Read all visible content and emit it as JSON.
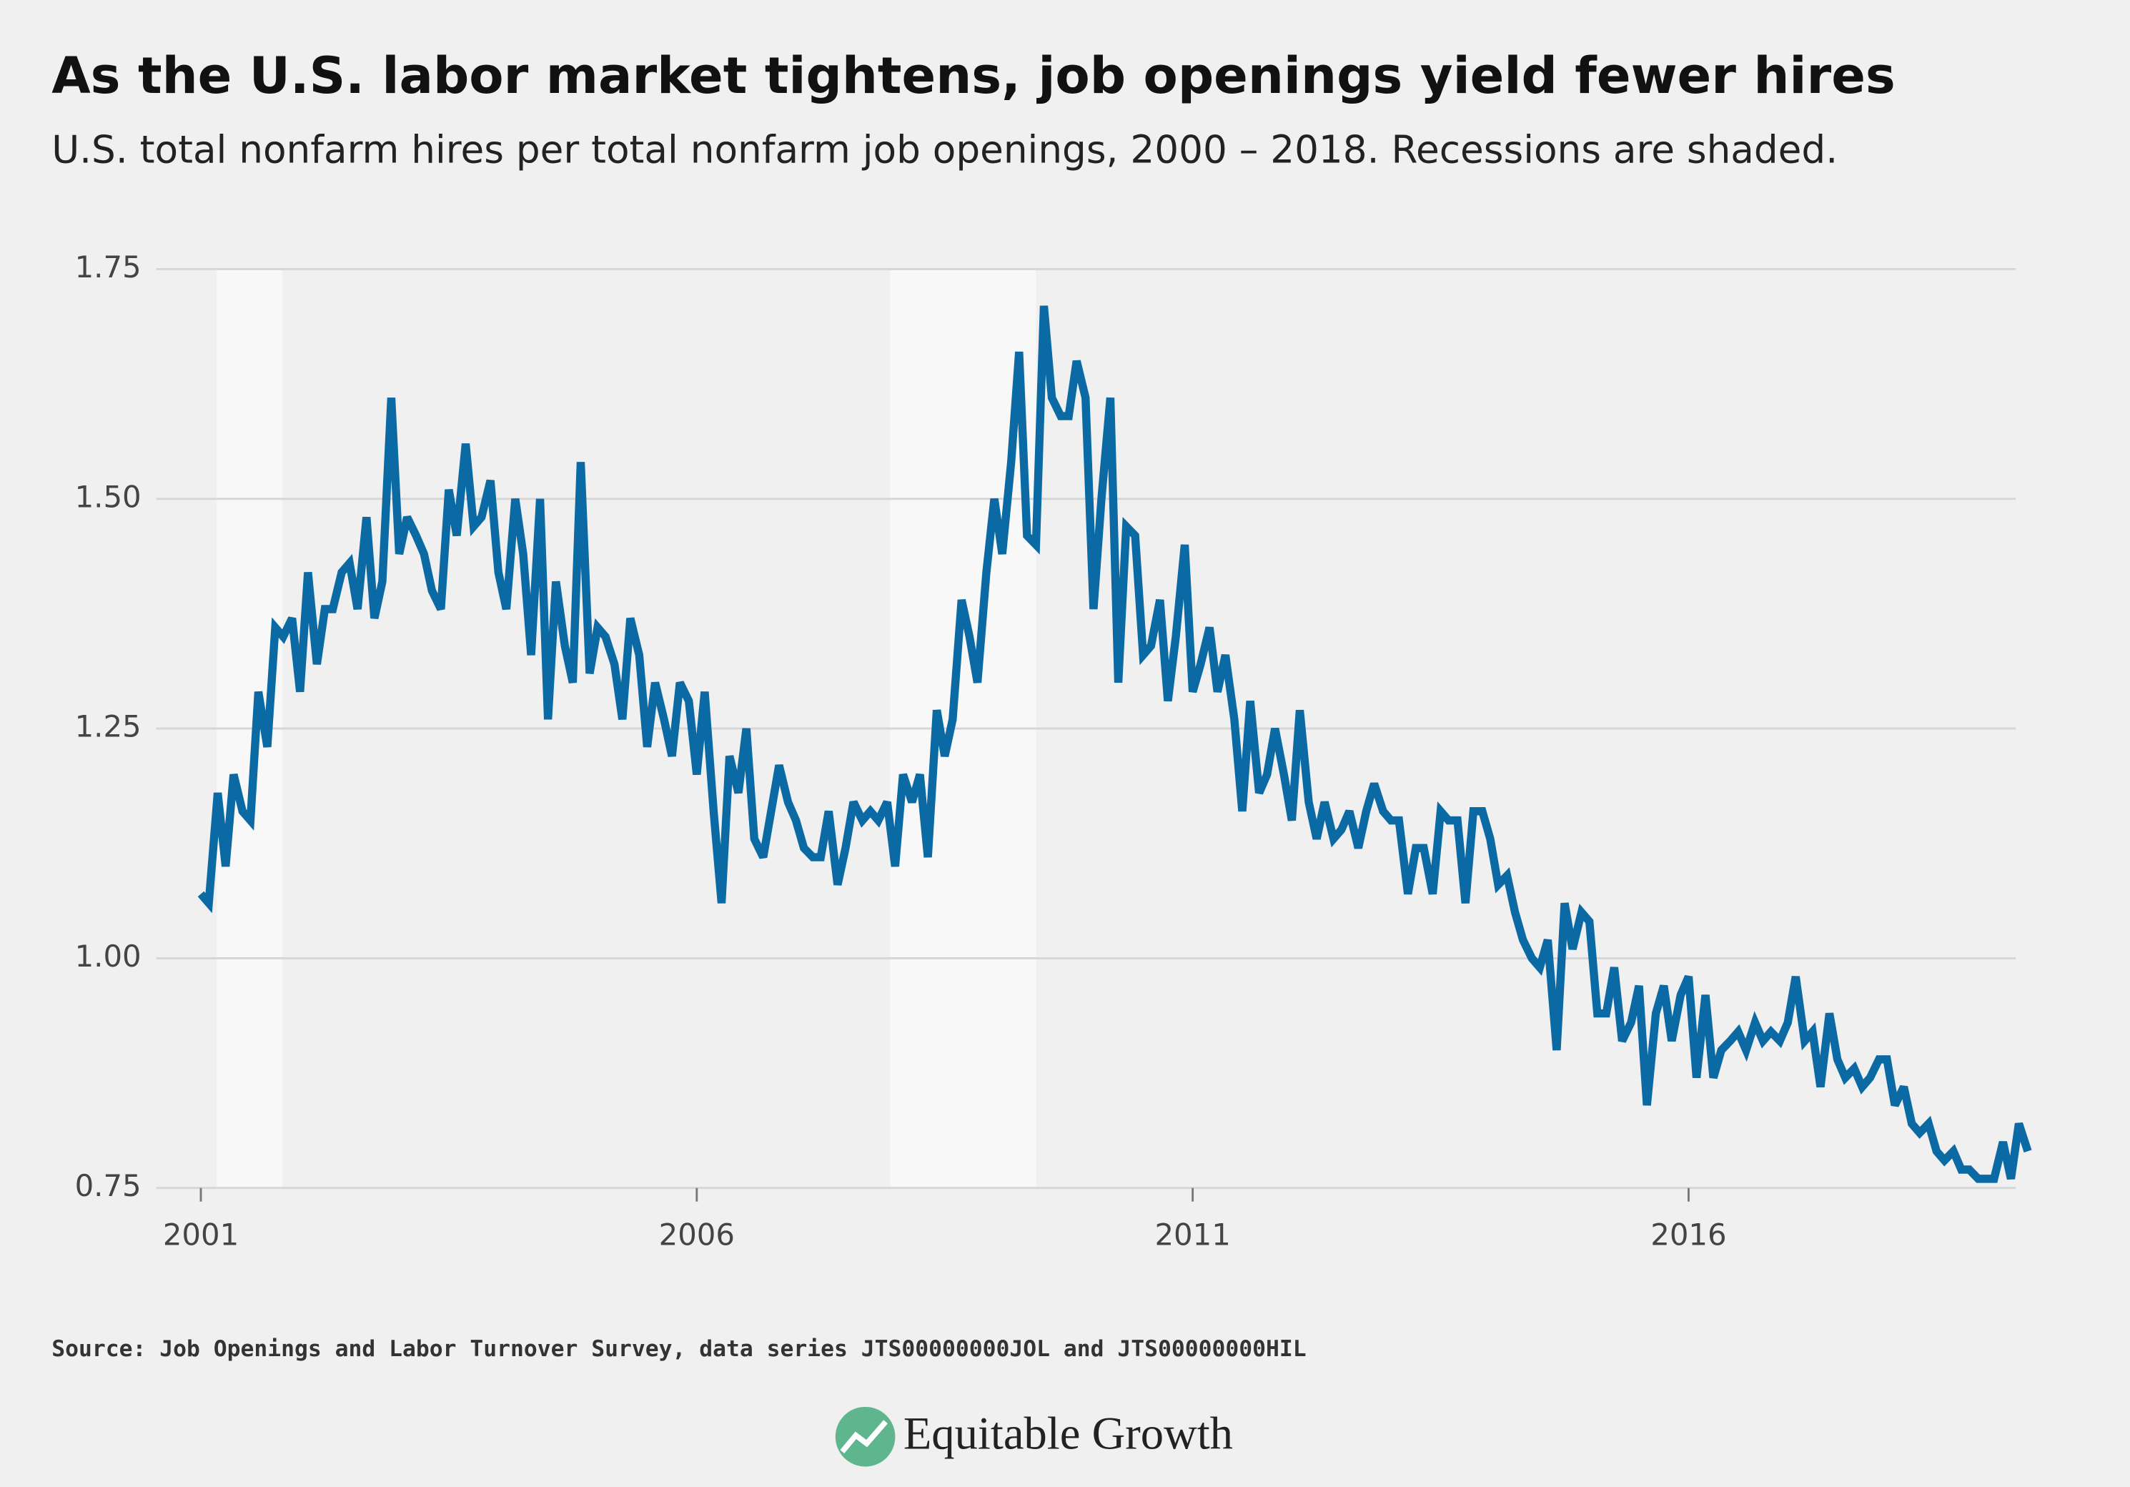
{
  "chart_data": {
    "type": "line",
    "title": "As the U.S. labor market tightens, job openings yield fewer hires",
    "subtitle": "U.S. total nonfarm hires per total nonfarm job openings, 2000 – 2018. Recessions are shaded.",
    "source": "Source: Job Openings and Labor Turnover Survey, data series JTS00000000JOL and JTS00000000HIL",
    "logo": "Equitable Growth",
    "color": "#0b69a3",
    "recession_color": "#f8f8f8",
    "recessions": [
      [
        2001.16,
        2001.82
      ],
      [
        2007.95,
        2009.42
      ]
    ],
    "xlim": [
      2000.55,
      2019.3
    ],
    "xticks": [
      2001,
      2006,
      2011,
      2016
    ],
    "ylim": [
      0.75,
      1.75
    ],
    "yticks": [
      0.75,
      {
        "value": 1.0,
        "label": "1.00"
      },
      1.25,
      {
        "value": 1.5,
        "label": "1.50"
      },
      1.75
    ],
    "grid": true,
    "x": [
      2001.0,
      2001.08,
      2001.17,
      2001.25,
      2001.33,
      2001.42,
      2001.5,
      2001.58,
      2001.67,
      2001.75,
      2001.83,
      2001.92,
      2002.0,
      2002.08,
      2002.17,
      2002.25,
      2002.33,
      2002.42,
      2002.5,
      2002.58,
      2002.67,
      2002.75,
      2002.83,
      2002.92,
      2003.0,
      2003.08,
      2003.17,
      2003.25,
      2003.33,
      2003.42,
      2003.5,
      2003.58,
      2003.67,
      2003.75,
      2003.83,
      2003.92,
      2004.0,
      2004.08,
      2004.17,
      2004.25,
      2004.33,
      2004.42,
      2004.5,
      2004.58,
      2004.67,
      2004.75,
      2004.83,
      2004.92,
      2005.0,
      2005.08,
      2005.17,
      2005.25,
      2005.33,
      2005.42,
      2005.5,
      2005.58,
      2005.67,
      2005.75,
      2005.83,
      2005.92,
      2006.0,
      2006.08,
      2006.17,
      2006.25,
      2006.33,
      2006.42,
      2006.5,
      2006.58,
      2006.67,
      2006.75,
      2006.83,
      2006.92,
      2007.0,
      2007.08,
      2007.17,
      2007.25,
      2007.33,
      2007.42,
      2007.5,
      2007.58,
      2007.67,
      2007.75,
      2007.83,
      2007.92,
      2008.0,
      2008.08,
      2008.17,
      2008.25,
      2008.33,
      2008.42,
      2008.5,
      2008.58,
      2008.67,
      2008.75,
      2008.83,
      2008.92,
      2009.0,
      2009.08,
      2009.17,
      2009.25,
      2009.33,
      2009.42,
      2009.5,
      2009.58,
      2009.67,
      2009.75,
      2009.83,
      2009.92,
      2010.0,
      2010.08,
      2010.17,
      2010.25,
      2010.33,
      2010.42,
      2010.5,
      2010.58,
      2010.67,
      2010.75,
      2010.83,
      2010.92,
      2011.0,
      2011.08,
      2011.17,
      2011.25,
      2011.33,
      2011.42,
      2011.5,
      2011.58,
      2011.67,
      2011.75,
      2011.83,
      2011.92,
      2012.0,
      2012.08,
      2012.17,
      2012.25,
      2012.33,
      2012.42,
      2012.5,
      2012.58,
      2012.67,
      2012.75,
      2012.83,
      2012.92,
      2013.0,
      2013.08,
      2013.17,
      2013.25,
      2013.33,
      2013.42,
      2013.5,
      2013.58,
      2013.67,
      2013.75,
      2013.83,
      2013.92,
      2014.0,
      2014.08,
      2014.17,
      2014.25,
      2014.33,
      2014.42,
      2014.5,
      2014.58,
      2014.67,
      2014.75,
      2014.83,
      2014.92,
      2015.0,
      2015.08,
      2015.17,
      2015.25,
      2015.33,
      2015.42,
      2015.5,
      2015.58,
      2015.67,
      2015.75,
      2015.83,
      2015.92,
      2016.0,
      2016.08,
      2016.17,
      2016.25,
      2016.33,
      2016.42,
      2016.5,
      2016.58,
      2016.67,
      2016.75,
      2016.83,
      2016.92,
      2017.0,
      2017.08,
      2017.17,
      2017.25,
      2017.33,
      2017.42,
      2017.5,
      2017.58,
      2017.67,
      2017.75,
      2017.83,
      2017.92,
      2018.0,
      2018.08,
      2018.17,
      2018.25,
      2018.33,
      2018.42,
      2018.5,
      2018.58,
      2018.67,
      2018.75,
      2018.83,
      2018.92,
      2019.0,
      2019.08,
      2019.17,
      2019.25,
      2019.33,
      2019.42
    ],
    "values": [
      1.07,
      1.06,
      1.18,
      1.1,
      1.2,
      1.16,
      1.15,
      1.29,
      1.23,
      1.36,
      1.35,
      1.37,
      1.29,
      1.42,
      1.32,
      1.38,
      1.38,
      1.42,
      1.43,
      1.38,
      1.48,
      1.37,
      1.41,
      1.61,
      1.44,
      1.48,
      1.46,
      1.44,
      1.4,
      1.38,
      1.51,
      1.46,
      1.56,
      1.47,
      1.48,
      1.52,
      1.42,
      1.38,
      1.5,
      1.44,
      1.33,
      1.5,
      1.26,
      1.41,
      1.34,
      1.3,
      1.54,
      1.31,
      1.36,
      1.35,
      1.32,
      1.26,
      1.37,
      1.33,
      1.23,
      1.3,
      1.26,
      1.22,
      1.3,
      1.28,
      1.2,
      1.29,
      1.16,
      1.06,
      1.22,
      1.18,
      1.25,
      1.13,
      1.11,
      1.16,
      1.21,
      1.17,
      1.15,
      1.12,
      1.11,
      1.11,
      1.16,
      1.08,
      1.12,
      1.17,
      1.15,
      1.16,
      1.15,
      1.17,
      1.1,
      1.2,
      1.17,
      1.2,
      1.11,
      1.27,
      1.22,
      1.26,
      1.39,
      1.35,
      1.3,
      1.42,
      1.5,
      1.44,
      1.54,
      1.66,
      1.46,
      1.45,
      1.71,
      1.61,
      1.59,
      1.59,
      1.65,
      1.61,
      1.38,
      1.5,
      1.61,
      1.3,
      1.47,
      1.46,
      1.33,
      1.34,
      1.39,
      1.28,
      1.35,
      1.45,
      1.29,
      1.32,
      1.36,
      1.29,
      1.33,
      1.26,
      1.16,
      1.28,
      1.18,
      1.2,
      1.25,
      1.2,
      1.15,
      1.27,
      1.17,
      1.13,
      1.17,
      1.13,
      1.14,
      1.16,
      1.12,
      1.16,
      1.19,
      1.16,
      1.15,
      1.15,
      1.07,
      1.12,
      1.12,
      1.07,
      1.16,
      1.15,
      1.15,
      1.06,
      1.16,
      1.16,
      1.13,
      1.08,
      1.09,
      1.05,
      1.02,
      1.0,
      0.99,
      1.02,
      0.9,
      1.06,
      1.01,
      1.05,
      1.04,
      0.94,
      0.94,
      0.99,
      0.91,
      0.93,
      0.97,
      0.84,
      0.94,
      0.97,
      0.91,
      0.96,
      0.98,
      0.87,
      0.96,
      0.87,
      0.9,
      0.91,
      0.92,
      0.9,
      0.93,
      0.91,
      0.92,
      0.91,
      0.93,
      0.98,
      0.91,
      0.92,
      0.86,
      0.94,
      0.89,
      0.87,
      0.88,
      0.86,
      0.87,
      0.89,
      0.89,
      0.84,
      0.86,
      0.82,
      0.81,
      0.82,
      0.79,
      0.78,
      0.79,
      0.77,
      0.77,
      0.76,
      0.76,
      0.76,
      0.8,
      0.76,
      0.82,
      0.79
    ]
  }
}
